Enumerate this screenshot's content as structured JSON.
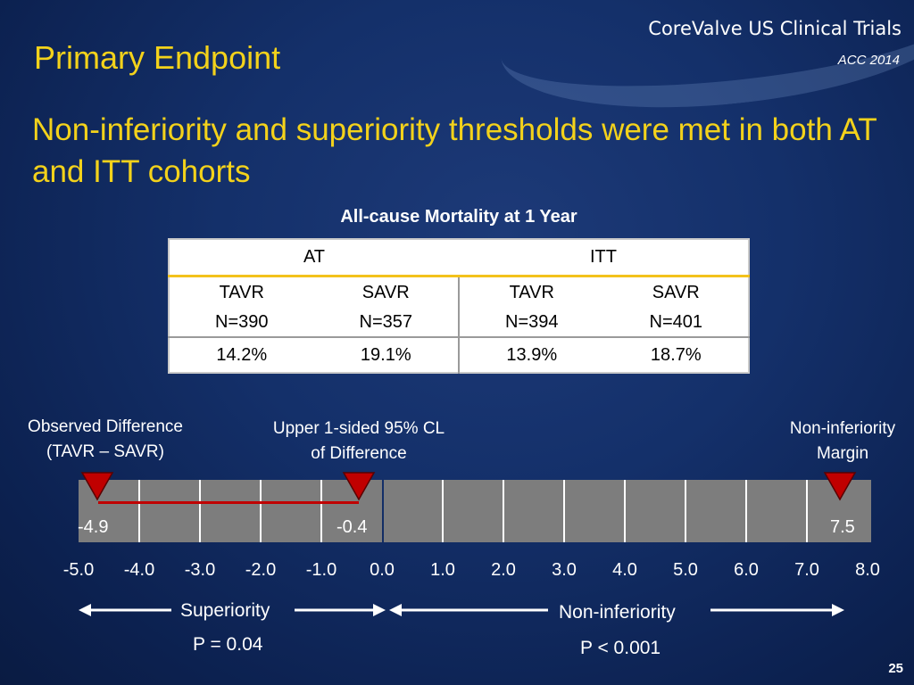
{
  "header": {
    "brand": "CoreValve US Clinical Trials",
    "conference": "ACC 2014",
    "title": "Primary Endpoint"
  },
  "headline": "Non-inferiority and superiority thresholds were met in both AT and ITT cohorts",
  "table": {
    "title": "All-cause Mortality at 1 Year",
    "groups": [
      "AT",
      "ITT"
    ],
    "arms": [
      "TAVR",
      "SAVR",
      "TAVR",
      "SAVR"
    ],
    "n": [
      "N=390",
      "N=357",
      "N=394",
      "N=401"
    ],
    "mortality": [
      "14.2%",
      "19.1%",
      "13.9%",
      "18.7%"
    ]
  },
  "forest": {
    "labels": {
      "observed_line1": "Observed Difference",
      "observed_line2": "(TAVR – SAVR)",
      "upper_line1": "Upper 1-sided 95% CL",
      "upper_line2": "of Difference",
      "margin_line1": "Non-inferiority",
      "margin_line2": "Margin"
    },
    "values": {
      "observed": "-4.9",
      "upper": "-0.4",
      "margin": "7.5"
    },
    "observed_value": -4.9,
    "upper_value": -0.4,
    "margin_value": 7.5,
    "ticks": [
      "-5.0",
      "-4.0",
      "-3.0",
      "-2.0",
      "-1.0",
      "0.0",
      "1.0",
      "2.0",
      "3.0",
      "4.0",
      "5.0",
      "6.0",
      "7.0",
      "8.0"
    ],
    "marker_color": "#c00000"
  },
  "arrows": {
    "superiority": "Superiority",
    "superiority_p": "P = 0.04",
    "noninferiority": "Non-inferiority",
    "noninferiority_p": "P < 0.001"
  },
  "page_number": "25"
}
